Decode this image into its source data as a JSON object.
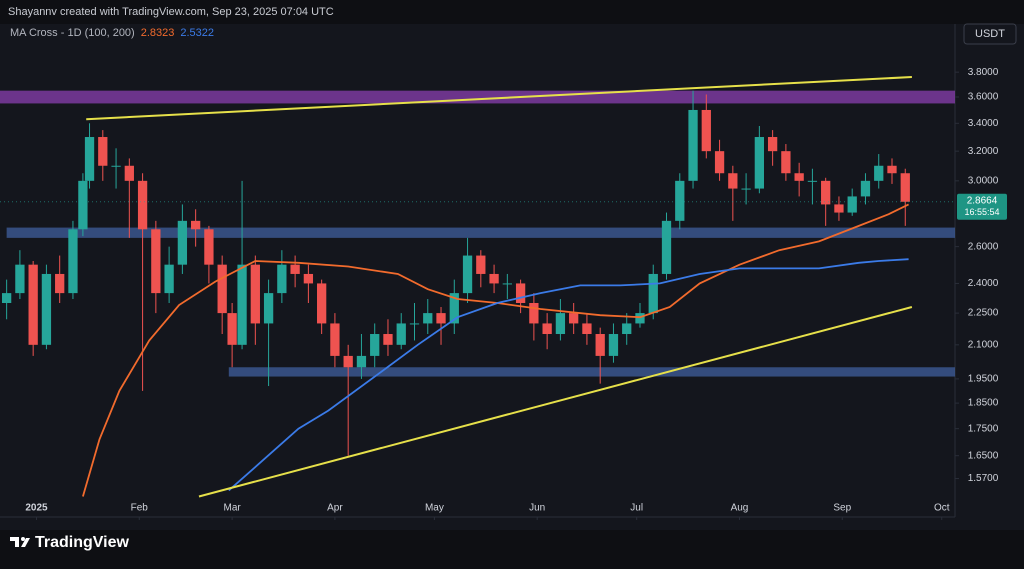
{
  "header": {
    "attribution": "Shayannv created with TradingView.com, Sep 23, 2025 07:04 UTC",
    "indicator": "MA Cross - 1D (100, 200)",
    "currency": "USDT"
  },
  "chart_data": {
    "type": "candlestick",
    "log_scale": true,
    "grid": false,
    "xlim": [
      -11,
      277
    ],
    "xticks": [
      {
        "value": 0,
        "label": "2025"
      },
      {
        "value": 31,
        "label": "Feb"
      },
      {
        "value": 59,
        "label": "Mar"
      },
      {
        "value": 90,
        "label": "Apr"
      },
      {
        "value": 120,
        "label": "May"
      },
      {
        "value": 151,
        "label": "Jun"
      },
      {
        "value": 181,
        "label": "Jul"
      },
      {
        "value": 212,
        "label": "Aug"
      },
      {
        "value": 243,
        "label": "Sep"
      },
      {
        "value": 273,
        "label": "Oct"
      }
    ],
    "ylim": [
      1.505,
      4.35
    ],
    "yticks": [
      {
        "value": 3.8,
        "label": "3.8000"
      },
      {
        "value": 3.6,
        "label": "3.6000"
      },
      {
        "value": 3.4,
        "label": "3.4000"
      },
      {
        "value": 3.2,
        "label": "3.2000"
      },
      {
        "value": 3.0,
        "label": "3.0000"
      },
      {
        "value": 2.6,
        "label": "2.6000"
      },
      {
        "value": 2.4,
        "label": "2.4000"
      },
      {
        "value": 2.25,
        "label": "2.2500"
      },
      {
        "value": 2.1,
        "label": "2.1000"
      },
      {
        "value": 1.95,
        "label": "1.9500"
      },
      {
        "value": 1.85,
        "label": "1.8500"
      },
      {
        "value": 1.75,
        "label": "1.7500"
      },
      {
        "value": 1.65,
        "label": "1.6500"
      },
      {
        "value": 1.57,
        "label": "1.5700"
      }
    ],
    "candles": {
      "up_color": "#26a69a",
      "down_color": "#ef5350",
      "x": [
        -9,
        -5,
        -1,
        3,
        7,
        11,
        14,
        16,
        20,
        24,
        28,
        32,
        36,
        40,
        44,
        48,
        52,
        56,
        59,
        62,
        66,
        70,
        74,
        78,
        82,
        86,
        90,
        94,
        98,
        102,
        106,
        110,
        114,
        118,
        122,
        126,
        130,
        134,
        138,
        142,
        146,
        150,
        154,
        158,
        162,
        166,
        170,
        174,
        178,
        182,
        186,
        190,
        194,
        198,
        202,
        206,
        210,
        214,
        218,
        222,
        226,
        230,
        234,
        238,
        242,
        246,
        250,
        254,
        258,
        262
      ],
      "open": [
        2.3,
        2.35,
        2.5,
        2.1,
        2.45,
        2.35,
        2.7,
        3.0,
        3.3,
        3.1,
        3.1,
        3.0,
        2.7,
        2.35,
        2.5,
        2.75,
        2.7,
        2.5,
        2.25,
        2.1,
        2.5,
        2.2,
        2.35,
        2.5,
        2.45,
        2.4,
        2.2,
        2.05,
        2.0,
        2.05,
        2.15,
        2.1,
        2.2,
        2.2,
        2.25,
        2.2,
        2.35,
        2.55,
        2.45,
        2.4,
        2.4,
        2.3,
        2.2,
        2.15,
        2.25,
        2.2,
        2.15,
        2.05,
        2.15,
        2.2,
        2.25,
        2.45,
        2.75,
        3.0,
        3.5,
        3.2,
        3.05,
        2.95,
        2.95,
        3.3,
        3.2,
        3.05,
        3.0,
        3.0,
        2.85,
        2.8,
        2.9,
        3.0,
        3.1,
        3.05
      ],
      "high": [
        2.42,
        2.58,
        2.52,
        2.5,
        2.55,
        2.75,
        3.05,
        3.4,
        3.35,
        3.22,
        3.15,
        3.05,
        2.75,
        2.6,
        2.85,
        2.82,
        2.72,
        2.55,
        2.3,
        3.0,
        2.55,
        2.42,
        2.58,
        2.55,
        2.5,
        2.42,
        2.25,
        2.1,
        2.15,
        2.2,
        2.22,
        2.25,
        2.3,
        2.32,
        2.28,
        2.42,
        2.65,
        2.58,
        2.5,
        2.45,
        2.42,
        2.35,
        2.25,
        2.32,
        2.3,
        2.25,
        2.18,
        2.2,
        2.25,
        2.3,
        2.5,
        2.8,
        3.05,
        3.65,
        3.62,
        3.28,
        3.1,
        3.05,
        3.38,
        3.35,
        3.25,
        3.12,
        3.08,
        3.02,
        2.9,
        2.95,
        3.05,
        3.18,
        3.15,
        3.08
      ],
      "low": [
        2.22,
        2.32,
        2.05,
        2.08,
        2.3,
        2.32,
        2.66,
        2.95,
        3.0,
        2.95,
        2.65,
        1.9,
        2.25,
        2.3,
        2.45,
        2.6,
        2.4,
        2.15,
        2.0,
        2.08,
        2.1,
        1.92,
        2.3,
        2.38,
        2.3,
        2.15,
        2.0,
        1.65,
        1.95,
        2.0,
        2.05,
        2.08,
        2.12,
        2.15,
        2.1,
        2.15,
        2.3,
        2.38,
        2.35,
        2.32,
        2.25,
        2.12,
        2.08,
        2.12,
        2.15,
        2.1,
        1.93,
        2.02,
        2.1,
        2.18,
        2.22,
        2.42,
        2.7,
        2.95,
        3.15,
        3.0,
        2.75,
        2.85,
        2.92,
        3.1,
        3.0,
        2.9,
        2.85,
        2.72,
        2.75,
        2.78,
        2.85,
        2.95,
        2.98,
        2.72
      ],
      "close": [
        2.35,
        2.5,
        2.1,
        2.45,
        2.35,
        2.7,
        3.0,
        3.3,
        3.1,
        3.1,
        3.0,
        2.7,
        2.35,
        2.5,
        2.75,
        2.7,
        2.5,
        2.25,
        2.1,
        2.5,
        2.2,
        2.35,
        2.5,
        2.45,
        2.4,
        2.2,
        2.05,
        2.0,
        2.05,
        2.15,
        2.1,
        2.2,
        2.2,
        2.25,
        2.2,
        2.35,
        2.55,
        2.45,
        2.4,
        2.4,
        2.3,
        2.2,
        2.15,
        2.25,
        2.2,
        2.15,
        2.05,
        2.15,
        2.2,
        2.25,
        2.45,
        2.75,
        3.0,
        3.5,
        3.2,
        3.05,
        2.95,
        2.95,
        3.3,
        3.2,
        3.05,
        3.0,
        3.0,
        2.85,
        2.8,
        2.9,
        3.0,
        3.1,
        3.05,
        2.8664
      ]
    },
    "series": [
      {
        "color": "#f26b2d",
        "last_value": 2.8323,
        "x": [
          14,
          19,
          25,
          34,
          43,
          54,
          66,
          79,
          94,
          109,
          118,
          127,
          139,
          152,
          170,
          182,
          191,
          200,
          212,
          224,
          236,
          248,
          257,
          263
        ],
        "values": [
          1.51,
          1.71,
          1.9,
          2.12,
          2.29,
          2.41,
          2.52,
          2.51,
          2.49,
          2.45,
          2.37,
          2.32,
          2.3,
          2.27,
          2.24,
          2.23,
          2.28,
          2.4,
          2.5,
          2.58,
          2.63,
          2.72,
          2.79,
          2.85
        ]
      },
      {
        "color": "#3b7be8",
        "last_value": 2.5322,
        "x": [
          58,
          67,
          79,
          88,
          103,
          115,
          127,
          139,
          152,
          164,
          176,
          188,
          200,
          212,
          224,
          236,
          248,
          254,
          263
        ],
        "values": [
          1.53,
          1.62,
          1.75,
          1.82,
          1.97,
          2.1,
          2.23,
          2.3,
          2.35,
          2.39,
          2.39,
          2.4,
          2.45,
          2.48,
          2.48,
          2.48,
          2.51,
          2.52,
          2.53
        ]
      }
    ],
    "trendlines": [
      {
        "color": "#e6e04a",
        "x": [
          15,
          264
        ],
        "values": [
          3.43,
          3.76
        ]
      },
      {
        "color": "#e6e04a",
        "x": [
          49,
          264
        ],
        "values": [
          1.51,
          2.28
        ]
      }
    ],
    "zones": [
      {
        "color": "#8a3fb0",
        "x": [
          -11,
          277
        ],
        "values": [
          3.55,
          3.65
        ]
      },
      {
        "color": "#3f5f9e",
        "x": [
          -9,
          277
        ],
        "values": [
          2.65,
          2.71
        ]
      },
      {
        "color": "#3f5f9e",
        "x": [
          58,
          277
        ],
        "values": [
          1.96,
          2.0
        ]
      }
    ],
    "last_price": 2.8664,
    "countdown": "16:55:54"
  },
  "footer": {
    "logo": "TradingView"
  }
}
